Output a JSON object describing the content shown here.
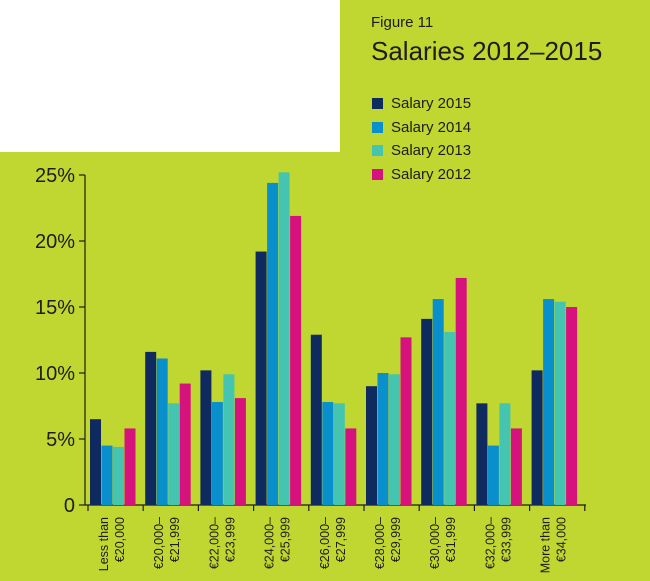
{
  "figure": {
    "label": "Figure 11",
    "title": "Salaries 2012–2015"
  },
  "colors": {
    "background": "#c0d631",
    "salary_2015": "#0f2a5e",
    "salary_2014": "#0a8fcd",
    "salary_2013": "#45c4b0",
    "salary_2012": "#d6127c"
  },
  "chart_data": {
    "type": "bar",
    "title": "Salaries 2012–2015",
    "xlabel": "",
    "ylabel": "",
    "ylim": [
      0,
      25
    ],
    "yticks": [
      "0",
      "5%",
      "10%",
      "15%",
      "20%",
      "25%"
    ],
    "grid": false,
    "legend_position": "top-right",
    "categories": [
      [
        "Less than",
        "€20,000"
      ],
      [
        "€20,000–",
        "€21,999"
      ],
      [
        "€22,000–",
        "€23,999"
      ],
      [
        "€24,000–",
        "€25,999"
      ],
      [
        "€26,000–",
        "€27,999"
      ],
      [
        "€28,000–",
        "€29,999"
      ],
      [
        "€30,000–",
        "€31,999"
      ],
      [
        "€32,000–",
        "€33,999"
      ],
      [
        "More than",
        "€34,000"
      ]
    ],
    "series": [
      {
        "name": "Salary 2015",
        "color": "#0f2a5e",
        "values": [
          6.5,
          11.6,
          10.2,
          19.2,
          12.9,
          9.0,
          14.1,
          7.7,
          10.2
        ]
      },
      {
        "name": "Salary 2014",
        "color": "#0a8fcd",
        "values": [
          4.5,
          11.1,
          7.8,
          24.4,
          7.8,
          10.0,
          15.6,
          4.5,
          15.6
        ]
      },
      {
        "name": "Salary 2013",
        "color": "#45c4b0",
        "values": [
          4.4,
          7.7,
          9.9,
          25.2,
          7.7,
          9.9,
          13.1,
          7.7,
          15.4
        ]
      },
      {
        "name": "Salary 2012",
        "color": "#d6127c",
        "values": [
          5.8,
          9.2,
          8.1,
          21.9,
          5.8,
          12.7,
          17.2,
          5.8,
          15.0
        ]
      }
    ]
  }
}
